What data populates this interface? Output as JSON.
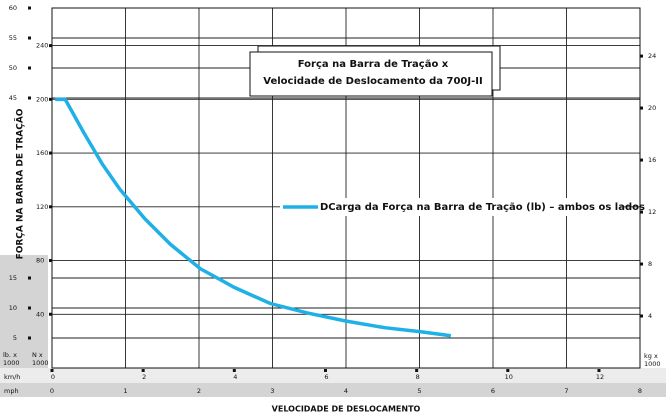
{
  "chart_data": {
    "type": "line",
    "title_lines": [
      "Força na Barra de Tração x",
      "Velocidade de Deslocamento da 700J-II"
    ],
    "ylabel": "FORÇA NA BARRA DE TRAÇÃO",
    "xlabel": "VELOCIDADE DE DESLOCAMENTO",
    "x": [
      0.07,
      0.29,
      0.7,
      1.1,
      1.49,
      2.04,
      2.6,
      3.25,
      4.0,
      4.79,
      5.6,
      6.44,
      7.3,
      8.09,
      8.75
    ],
    "series": [
      {
        "name": "DCarga da Força na Barra de Tração (lb) – ambos os lados",
        "color": "#1fb0e6",
        "values": [
          200,
          200,
          175,
          152,
          133,
          111,
          92,
          74,
          60,
          48,
          41,
          35,
          30,
          27,
          24
        ]
      }
    ],
    "xunit": "km/h",
    "xlim": [
      0,
      12.9
    ],
    "xticks": [
      0,
      2,
      4,
      6,
      8,
      10,
      12
    ],
    "x2unit": "mph",
    "x2lim": [
      0,
      8
    ],
    "x2ticks": [
      0,
      1,
      2,
      3,
      4,
      5,
      6,
      7,
      8
    ],
    "yunit": [
      "N x",
      "1000"
    ],
    "ylim": [
      0,
      268
    ],
    "yticks": [
      40,
      80,
      120,
      160,
      200,
      240
    ],
    "y3unit": [
      "lb. x",
      "1000"
    ],
    "y3lim": [
      0,
      60
    ],
    "y3ticks": [
      5,
      10,
      15,
      45,
      50,
      55,
      60
    ],
    "y2unit": [
      "kg x",
      "1000"
    ],
    "y2lim": [
      0,
      27.7
    ],
    "y2ticks": [
      4,
      8,
      12,
      16,
      20,
      24
    ],
    "grid": true
  }
}
